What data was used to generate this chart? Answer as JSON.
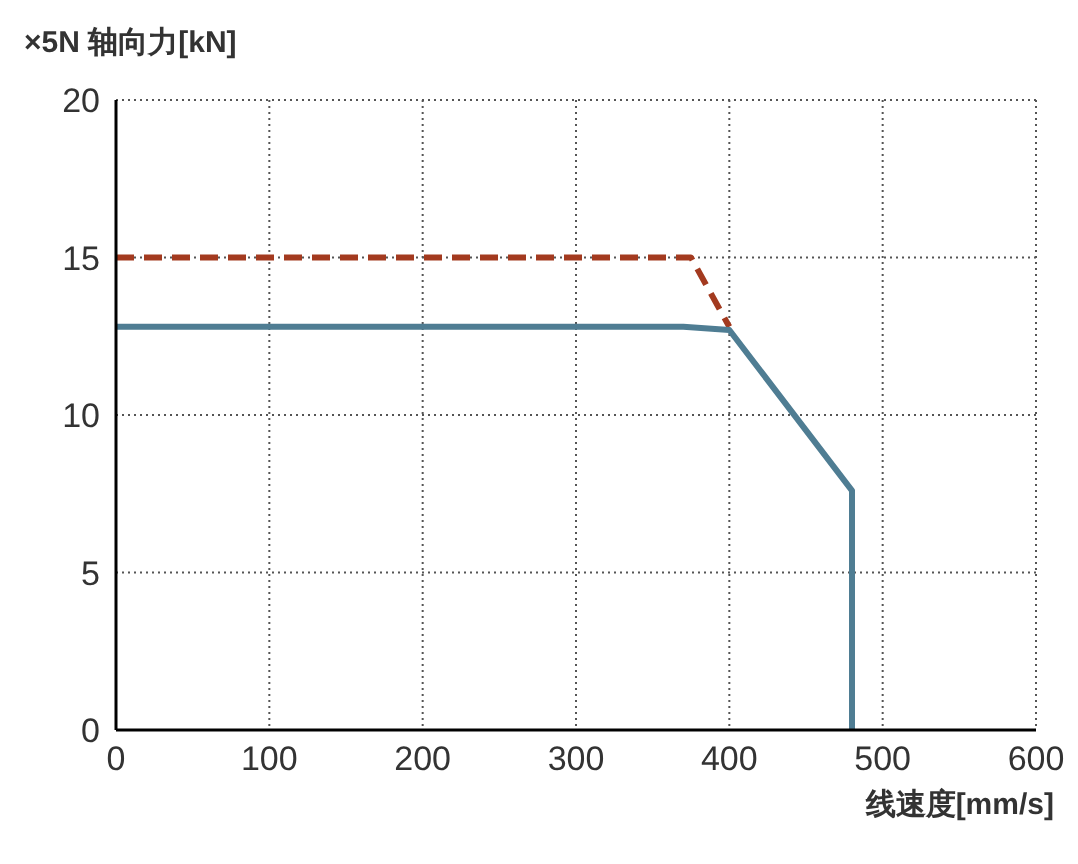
{
  "chart_data": {
    "type": "line",
    "xlabel": "线速度[mm/s]",
    "ylabel": "×5N 轴向力[kN]",
    "xlim": [
      0,
      600
    ],
    "xticks": [
      0,
      100,
      200,
      300,
      400,
      500,
      600
    ],
    "ylim": [
      0,
      20
    ],
    "yticks": [
      0,
      5,
      10,
      15,
      20
    ],
    "grid": true,
    "marker": "none",
    "series": [
      {
        "color": "#a33a1f",
        "line_style": "dashed",
        "x": [
          0,
          375,
          400
        ],
        "values": [
          15,
          15,
          12.8
        ]
      },
      {
        "color": "#4f7d93",
        "line_style": "solid",
        "x": [
          0,
          370,
          400,
          480,
          480
        ],
        "values": [
          12.8,
          12.8,
          12.7,
          7.6,
          0
        ]
      }
    ]
  }
}
